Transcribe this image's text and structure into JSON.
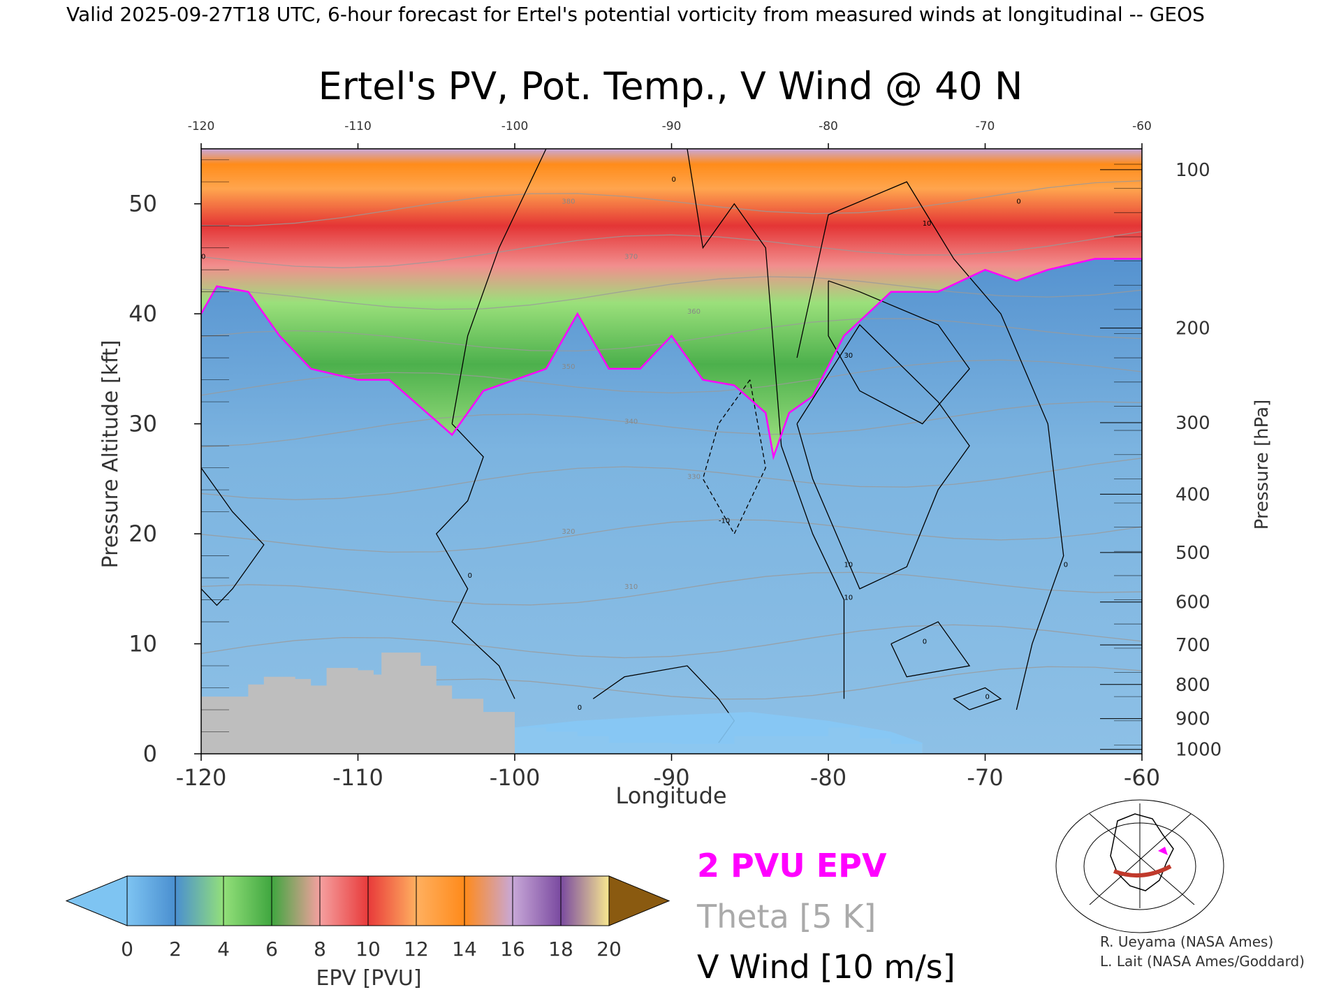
{
  "header": {
    "valid_line": "Valid 2025-09-27T18 UTC, 6-hour forecast for Ertel's potential vorticity from measured winds at longitudinal -- GEOS"
  },
  "chart_data": {
    "type": "heatmap",
    "title": "Ertel's PV, Pot. Temp., V Wind @ 40 N",
    "xlabel": "Longitude",
    "ylabel": "Pressure Altitude [kft]",
    "y2label": "Pressure [hPa]",
    "xlim": [
      -120,
      -60
    ],
    "ylim": [
      0,
      55
    ],
    "x_ticks": [
      "-120",
      "-110",
      "-100",
      "-90",
      "-80",
      "-70",
      "-60"
    ],
    "y_ticks": [
      "0",
      "10",
      "20",
      "30",
      "40",
      "50"
    ],
    "pressure_ticks": [
      {
        "label": "1000",
        "kft": 0.4
      },
      {
        "label": "900",
        "kft": 3.2
      },
      {
        "label": "800",
        "kft": 6.3
      },
      {
        "label": "700",
        "kft": 9.9
      },
      {
        "label": "600",
        "kft": 13.8
      },
      {
        "label": "500",
        "kft": 18.3
      },
      {
        "label": "400",
        "kft": 23.6
      },
      {
        "label": "300",
        "kft": 30.1
      },
      {
        "label": "200",
        "kft": 38.7
      },
      {
        "label": "100",
        "kft": 53.1
      }
    ],
    "topography_kft": [
      {
        "x": -120,
        "y": 5.2
      },
      {
        "x": -118,
        "y": 5.2
      },
      {
        "x": -117,
        "y": 6.3
      },
      {
        "x": -116,
        "y": 7.0
      },
      {
        "x": -114,
        "y": 6.8
      },
      {
        "x": -113,
        "y": 6.2
      },
      {
        "x": -112,
        "y": 7.8
      },
      {
        "x": -110,
        "y": 7.6
      },
      {
        "x": -109,
        "y": 7.2
      },
      {
        "x": -108.5,
        "y": 9.2
      },
      {
        "x": -106,
        "y": 8.0
      },
      {
        "x": -105,
        "y": 6.2
      },
      {
        "x": -104,
        "y": 5.0
      },
      {
        "x": -102,
        "y": 3.8
      },
      {
        "x": -100,
        "y": 2.4
      },
      {
        "x": -98,
        "y": 2.0
      },
      {
        "x": -96,
        "y": 1.6
      },
      {
        "x": -94,
        "y": 1.0
      },
      {
        "x": -90,
        "y": 0.9
      },
      {
        "x": -86,
        "y": 1.6
      },
      {
        "x": -82,
        "y": 1.6
      },
      {
        "x": -80,
        "y": 2.4
      },
      {
        "x": -78,
        "y": 1.4
      },
      {
        "x": -76,
        "y": 0.9
      },
      {
        "x": -74,
        "y": 0
      }
    ],
    "pv2_tropopause_kft": [
      {
        "x": -120,
        "y": 40
      },
      {
        "x": -119,
        "y": 42.5
      },
      {
        "x": -117,
        "y": 42
      },
      {
        "x": -115,
        "y": 38
      },
      {
        "x": -113,
        "y": 35
      },
      {
        "x": -110,
        "y": 34
      },
      {
        "x": -108,
        "y": 34
      },
      {
        "x": -106,
        "y": 31.5
      },
      {
        "x": -104,
        "y": 29
      },
      {
        "x": -102,
        "y": 33
      },
      {
        "x": -98,
        "y": 35
      },
      {
        "x": -96,
        "y": 40
      },
      {
        "x": -94,
        "y": 35
      },
      {
        "x": -92,
        "y": 35
      },
      {
        "x": -90,
        "y": 38
      },
      {
        "x": -88,
        "y": 34
      },
      {
        "x": -86,
        "y": 33.5
      },
      {
        "x": -84,
        "y": 31
      },
      {
        "x": -83.5,
        "y": 27
      },
      {
        "x": -82.5,
        "y": 31
      },
      {
        "x": -81,
        "y": 32.5
      },
      {
        "x": -79,
        "y": 38
      },
      {
        "x": -76,
        "y": 42
      },
      {
        "x": -73,
        "y": 42
      },
      {
        "x": -70,
        "y": 44
      },
      {
        "x": -68,
        "y": 43
      },
      {
        "x": -66,
        "y": 44
      },
      {
        "x": -63,
        "y": 45
      },
      {
        "x": -60,
        "y": 45
      }
    ],
    "epv_colorbar": {
      "label": "EPV [PVU]",
      "ticks": [
        "0",
        "2",
        "4",
        "6",
        "8",
        "10",
        "12",
        "14",
        "16",
        "18",
        "20"
      ],
      "colors": [
        "#7ec4f2",
        "#4a8fd0",
        "#93e07a",
        "#3fa63f",
        "#f5a0a0",
        "#e83a3a",
        "#ffb060",
        "#ff8a1a",
        "#c8a8d8",
        "#7a4aa0",
        "#f8e890",
        "#8a5a10"
      ]
    },
    "legend": {
      "pv_contour": "2 PVU EPV",
      "theta": "Theta [5 K]",
      "wind": "V Wind [10 m/s]"
    },
    "wind_contour_labels": [
      "0",
      "0",
      "0",
      "0",
      "10",
      "30",
      "10",
      "0",
      "-10",
      "10",
      "0",
      "0",
      "0",
      "0"
    ],
    "theta_contour_labels": [
      "380",
      "370",
      "360",
      "350",
      "340",
      "330",
      "320",
      "310"
    ]
  },
  "credits": {
    "line1": "R. Ueyama (NASA Ames)",
    "line2": "L. Lait (NASA Ames/Goddard)"
  },
  "colors": {
    "pv_contour": "#ff00ff",
    "theta_text": "#aaaaaa",
    "terrain": "#bebebe",
    "section_line": "#c0392b",
    "map_marker": "#ff00ff"
  }
}
